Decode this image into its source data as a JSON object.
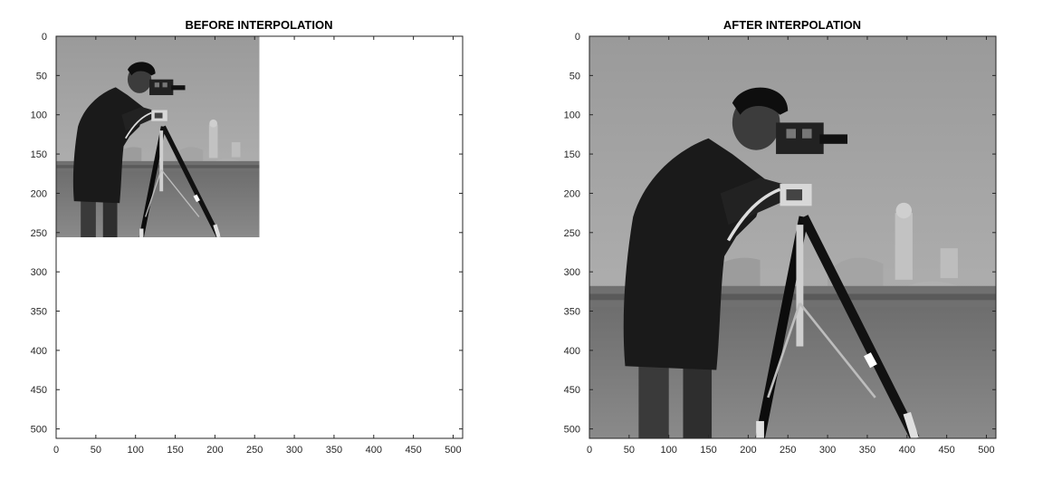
{
  "chart_data": [
    {
      "type": "image",
      "title": "BEFORE INTERPOLATION",
      "xlabel": "",
      "ylabel": "",
      "image_content": "cameraman photograph (grayscale)",
      "image_extent": {
        "x": [
          0,
          256
        ],
        "y": [
          0,
          256
        ]
      },
      "xlim": [
        0,
        512
      ],
      "ylim": [
        0,
        512
      ],
      "y_direction": "reverse",
      "xticks": [
        0,
        50,
        100,
        150,
        200,
        250,
        300,
        350,
        400,
        450,
        500
      ],
      "yticks": [
        0,
        50,
        100,
        150,
        200,
        250,
        300,
        350,
        400,
        450,
        500
      ],
      "grid": false
    },
    {
      "type": "image",
      "title": "AFTER INTERPOLATION",
      "xlabel": "",
      "ylabel": "",
      "image_content": "cameraman photograph (grayscale)",
      "image_extent": {
        "x": [
          0,
          512
        ],
        "y": [
          0,
          512
        ]
      },
      "xlim": [
        0,
        512
      ],
      "ylim": [
        0,
        512
      ],
      "y_direction": "reverse",
      "xticks": [
        0,
        50,
        100,
        150,
        200,
        250,
        300,
        350,
        400,
        450,
        500
      ],
      "yticks": [
        0,
        50,
        100,
        150,
        200,
        250,
        300,
        350,
        400,
        450,
        500
      ],
      "grid": false
    }
  ]
}
